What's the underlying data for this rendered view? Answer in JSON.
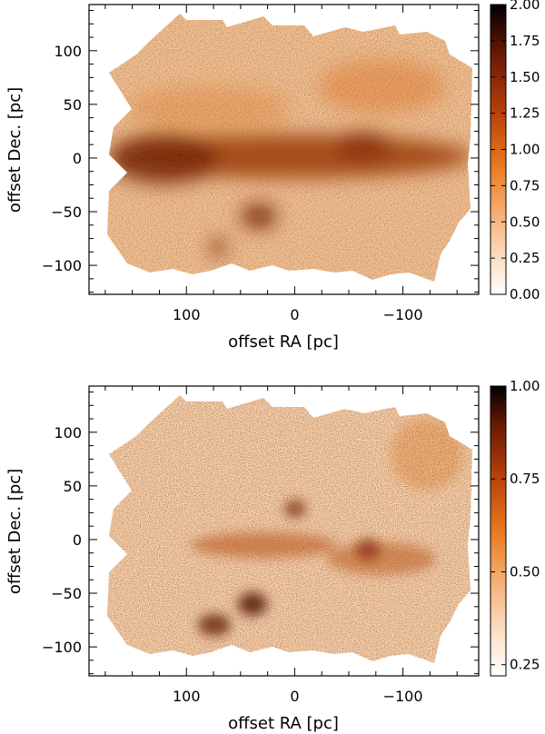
{
  "chart_data": [
    {
      "type": "heatmap",
      "xlabel": "offset RA [pc]",
      "ylabel": "offset Dec. [pc]",
      "xlim": [
        190,
        -170
      ],
      "ylim": [
        -127,
        143
      ],
      "x_ticks": [
        100,
        0,
        -100
      ],
      "y_ticks": [
        -100,
        -50,
        0,
        50,
        100
      ],
      "colorbar": {
        "min": 0.0,
        "max": 2.0,
        "ticks": [
          "0.00",
          "0.25",
          "0.50",
          "0.75",
          "1.00",
          "1.25",
          "1.50",
          "1.75",
          "2.00"
        ]
      },
      "colormap": [
        "#ffffff",
        "#fbe0c6",
        "#f5a868",
        "#e8781f",
        "#b9430b",
        "#6d1a05",
        "#000000"
      ],
      "features": [
        {
          "type": "band",
          "x": 0,
          "y": 0,
          "level": 0.85
        },
        {
          "type": "clump",
          "x": 120,
          "y": -3,
          "level": 1.15
        },
        {
          "type": "clump",
          "x": 40,
          "y": -58,
          "level": 1.1
        },
        {
          "type": "clump",
          "x": 78,
          "y": -92,
          "level": 1.0
        },
        {
          "type": "clump",
          "x": -60,
          "y": 10,
          "level": 1.0
        }
      ]
    },
    {
      "type": "heatmap",
      "xlabel": "offset RA [pc]",
      "ylabel": "offset Dec. [pc]",
      "xlim": [
        190,
        -170
      ],
      "ylim": [
        -127,
        143
      ],
      "x_ticks": [
        100,
        0,
        -100
      ],
      "y_ticks": [
        -100,
        -50,
        0,
        50,
        100
      ],
      "colorbar": {
        "min": 0.22,
        "max": 1.0,
        "ticks": [
          "0.25",
          "0.50",
          "0.75",
          "1.00"
        ]
      },
      "colormap": [
        "#ffffff",
        "#fbe0c6",
        "#f5a868",
        "#e8781f",
        "#b9430b",
        "#6d1a05",
        "#000000"
      ],
      "features": [
        {
          "type": "clump",
          "x": 40,
          "y": -58,
          "level": 0.95
        },
        {
          "type": "clump",
          "x": 78,
          "y": -90,
          "level": 0.9
        },
        {
          "type": "clump",
          "x": -75,
          "y": -10,
          "level": 0.85
        },
        {
          "type": "clump",
          "x": 0,
          "y": 30,
          "level": 0.85
        }
      ]
    }
  ]
}
